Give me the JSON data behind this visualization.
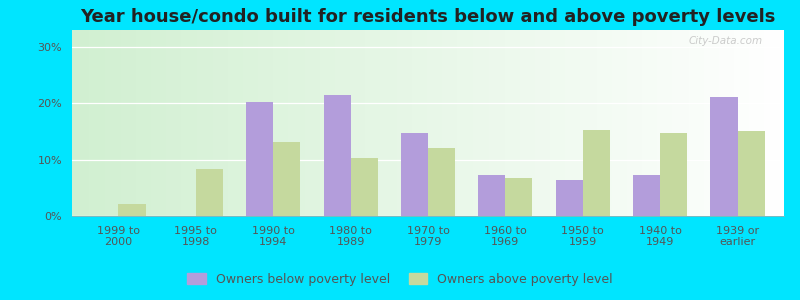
{
  "title": "Year house/condo built for residents below and above poverty levels",
  "categories": [
    "1999 to\n2000",
    "1995 to\n1998",
    "1990 to\n1994",
    "1980 to\n1989",
    "1970 to\n1979",
    "1960 to\n1969",
    "1950 to\n1959",
    "1940 to\n1949",
    "1939 or\nearlier"
  ],
  "below_poverty": [
    0.0,
    0.0,
    20.3,
    21.5,
    14.8,
    7.2,
    6.3,
    7.2,
    21.2
  ],
  "above_poverty": [
    2.2,
    8.3,
    13.2,
    10.3,
    12.0,
    6.8,
    15.3,
    14.8,
    15.0
  ],
  "below_color": "#b39ddb",
  "above_color": "#c5d99e",
  "outer_bg": "#00e5ff",
  "ylim": [
    0,
    33
  ],
  "yticks": [
    0,
    10,
    20,
    30
  ],
  "ytick_labels": [
    "0%",
    "10%",
    "20%",
    "30%"
  ],
  "bar_width": 0.35,
  "legend_below_label": "Owners below poverty level",
  "legend_above_label": "Owners above poverty level",
  "title_fontsize": 13,
  "tick_fontsize": 8,
  "legend_fontsize": 9
}
